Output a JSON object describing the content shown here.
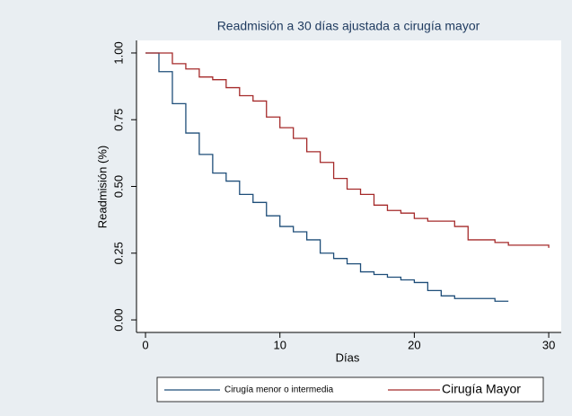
{
  "chart_data": {
    "type": "line",
    "step": "post",
    "title": "Readmisión a 30 días ajustada a cirugía mayor",
    "x_label": "Días",
    "y_label": "Readmisión (%)",
    "xlim": [
      -0.67,
      30.93
    ],
    "ylim": [
      -0.047,
      1.047
    ],
    "xticks": [
      0,
      10,
      20,
      30
    ],
    "yticks": [
      {
        "value": 0,
        "label": "0.00"
      },
      {
        "value": 0.25,
        "label": "0.25"
      },
      {
        "value": 0.5,
        "label": "0.50"
      },
      {
        "value": 0.75,
        "label": "0.75"
      },
      {
        "value": 1,
        "label": "1.00"
      }
    ],
    "grid": false,
    "series": [
      {
        "name": "Cirugía menor o intermedia",
        "color": "#1f4e79",
        "x": [
          0,
          1,
          2,
          3,
          4,
          5,
          6,
          7,
          8,
          9,
          10,
          11,
          12,
          13,
          14,
          15,
          16,
          17,
          18,
          19,
          20,
          21,
          22,
          23,
          24,
          25,
          26,
          27
        ],
        "values": [
          1,
          0.93,
          0.81,
          0.7,
          0.62,
          0.55,
          0.52,
          0.47,
          0.44,
          0.39,
          0.35,
          0.33,
          0.3,
          0.25,
          0.23,
          0.21,
          0.18,
          0.17,
          0.16,
          0.15,
          0.14,
          0.11,
          0.09,
          0.08,
          0.08,
          0.08,
          0.07,
          0.07
        ]
      },
      {
        "name": "Cirugía Mayor",
        "color": "#a52a2a",
        "x": [
          0,
          1,
          2,
          3,
          4,
          5,
          6,
          7,
          8,
          9,
          10,
          11,
          12,
          13,
          14,
          15,
          16,
          17,
          18,
          19,
          20,
          21,
          22,
          23,
          24,
          25,
          26,
          27,
          28,
          29,
          30
        ],
        "values": [
          1,
          1,
          0.96,
          0.94,
          0.91,
          0.9,
          0.87,
          0.84,
          0.82,
          0.76,
          0.72,
          0.68,
          0.63,
          0.59,
          0.53,
          0.49,
          0.47,
          0.43,
          0.41,
          0.4,
          0.38,
          0.37,
          0.37,
          0.35,
          0.3,
          0.3,
          0.29,
          0.28,
          0.28,
          0.28,
          0.27
        ]
      }
    ]
  }
}
